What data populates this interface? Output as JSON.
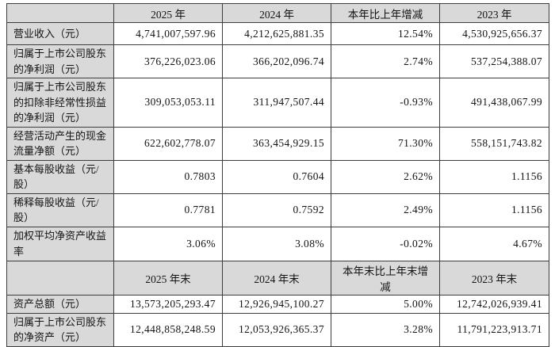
{
  "colors": {
    "header_bg": "#d9d9d9",
    "label_bg": "#d9d9d9",
    "value_bg": "#ffffff",
    "border": "#3d3d3d",
    "text": "#141414"
  },
  "rows": [
    {
      "type": "header",
      "cells": [
        "",
        "2025 年",
        "2024 年",
        "本年比上年增减",
        "2023 年"
      ]
    },
    {
      "type": "data",
      "label": "营业收入（元）",
      "values": [
        "4,741,007,597.96",
        "4,212,625,881.35",
        "12.54%",
        "4,530,925,656.37"
      ]
    },
    {
      "type": "data",
      "label": "归属于上市公司股东的净利润（元）",
      "values": [
        "376,226,023.06",
        "366,202,096.74",
        "2.74%",
        "537,254,388.07"
      ]
    },
    {
      "type": "data",
      "label": "归属于上市公司股东的扣除非经常性损益的净利润（元）",
      "values": [
        "309,053,053.11",
        "311,947,507.44",
        "-0.93%",
        "491,438,067.99"
      ]
    },
    {
      "type": "data",
      "label": "经营活动产生的现金流量净额（元）",
      "values": [
        "622,602,778.07",
        "363,454,929.15",
        "71.30%",
        "558,151,743.82"
      ]
    },
    {
      "type": "data",
      "label": "基本每股收益（元/股）",
      "values": [
        "0.7803",
        "0.7604",
        "2.62%",
        "1.1156"
      ]
    },
    {
      "type": "data",
      "label": "稀释每股收益（元/股）",
      "values": [
        "0.7781",
        "0.7592",
        "2.49%",
        "1.1156"
      ]
    },
    {
      "type": "data",
      "label": "加权平均净资产收益率",
      "values": [
        "3.06%",
        "3.08%",
        "-0.02%",
        "4.67%"
      ]
    },
    {
      "type": "header",
      "cells": [
        "",
        "2025 年末",
        "2024 年末",
        "本年末比上年末增减",
        "2023 年末"
      ]
    },
    {
      "type": "data",
      "label": "资产总额（元）",
      "values": [
        "13,573,205,293.47",
        "12,926,945,100.27",
        "5.00%",
        "12,742,026,939.41"
      ]
    },
    {
      "type": "data",
      "label": "归属于上市公司股东的净资产（元）",
      "values": [
        "12,448,858,248.59",
        "12,053,926,365.37",
        "3.28%",
        "11,791,223,913.71"
      ]
    }
  ]
}
